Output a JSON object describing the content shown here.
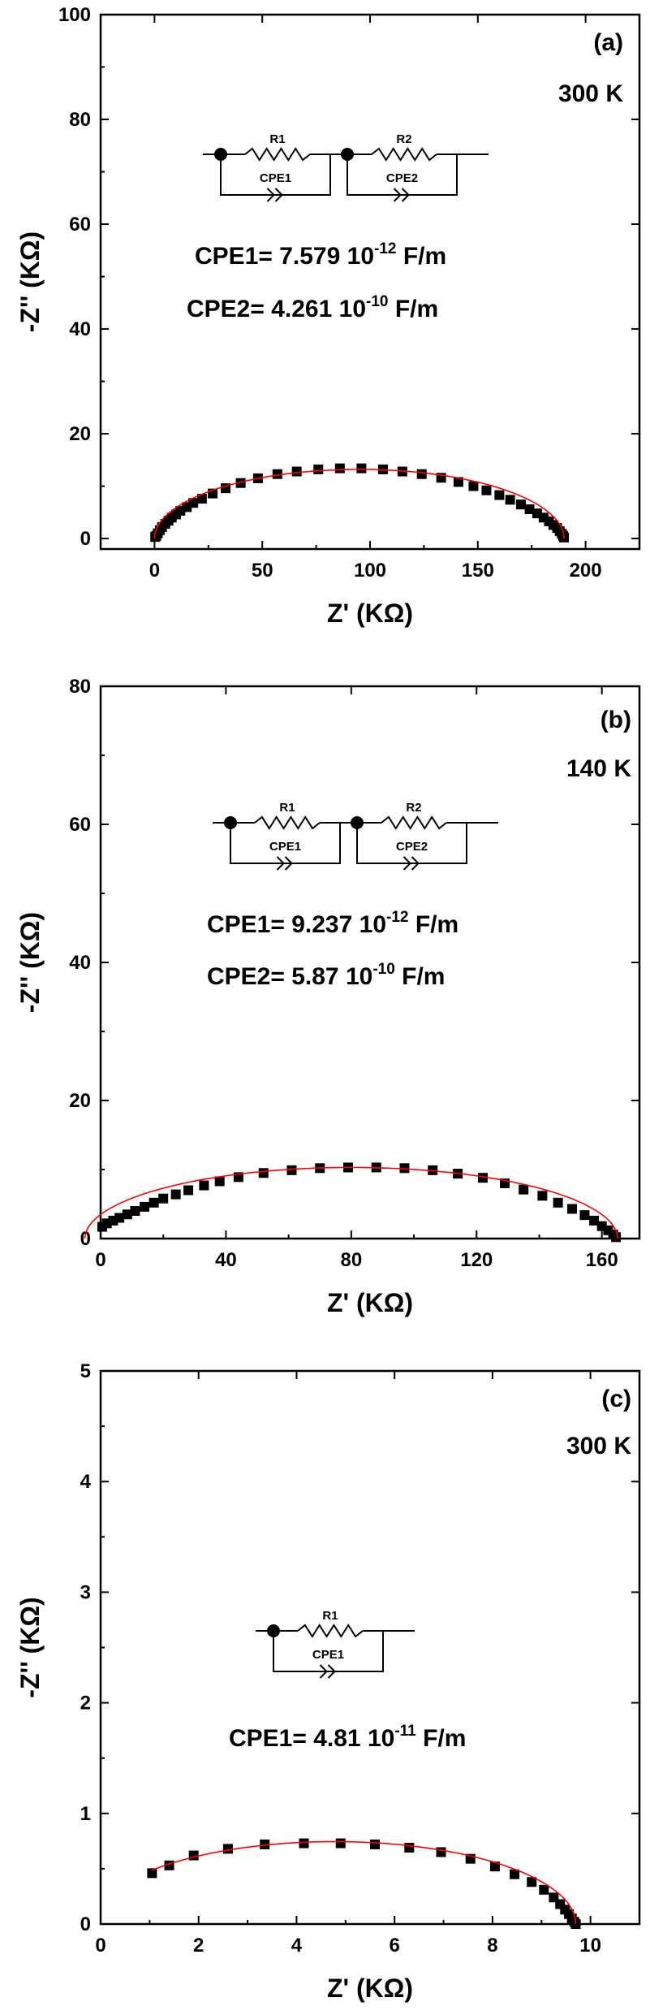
{
  "chart_data": [
    {
      "type": "scatter",
      "panel_label": "(a)",
      "temperature": "300 K",
      "xlabel": "Z' (KΩ)",
      "ylabel": "-Z'' (KΩ)",
      "xlim": [
        -25,
        225
      ],
      "ylim": [
        -2,
        100
      ],
      "xticks": [
        0,
        50,
        100,
        150,
        200
      ],
      "yticks": [
        0,
        20,
        40,
        60,
        80,
        100
      ],
      "circuit": {
        "elements": [
          "R1",
          "CPE1",
          "R2",
          "CPE2"
        ]
      },
      "annotations": [
        {
          "key": "CPE1",
          "prefix": "CPE1= 7.579 10",
          "exp": "-12",
          "suffix": " F/m"
        },
        {
          "key": "CPE2",
          "prefix": "CPE2= 4.261 10",
          "exp": "-10",
          "suffix": " F/m"
        }
      ],
      "series": [
        {
          "kind": "measured",
          "arc": {
            "zmin": 0,
            "zmax": 190,
            "height": 13.2
          },
          "x": [
            0.3,
            0.8,
            1.5,
            2.5,
            3.5,
            5,
            6.5,
            8,
            10,
            12,
            15,
            18,
            22,
            27,
            33,
            40,
            48,
            57,
            66,
            76,
            86,
            96,
            106,
            115,
            124,
            133,
            141,
            148,
            154,
            160,
            165,
            170,
            174,
            177.5,
            180.5,
            183,
            185,
            186.8,
            188,
            189,
            189.6,
            190
          ],
          "y": [
            0.3,
            0.5,
            1.0,
            1.6,
            2.2,
            2.8,
            3.4,
            4.0,
            4.6,
            5.3,
            6.0,
            6.8,
            7.6,
            8.6,
            9.6,
            10.6,
            11.5,
            12.3,
            12.8,
            13.2,
            13.4,
            13.4,
            13.2,
            12.8,
            12.3,
            11.6,
            10.8,
            10.0,
            9.2,
            8.3,
            7.4,
            6.5,
            5.6,
            4.8,
            4.0,
            3.3,
            2.6,
            2.0,
            1.4,
            0.9,
            0.5,
            0.2
          ]
        },
        {
          "kind": "fit",
          "color": "#ff0000"
        }
      ]
    },
    {
      "type": "scatter",
      "panel_label": "(b)",
      "temperature": "140 K",
      "xlabel": "Z' (KΩ)",
      "ylabel": "-Z'' (KΩ)",
      "xlim": [
        0,
        172
      ],
      "ylim": [
        0,
        80
      ],
      "xticks": [
        0,
        40,
        80,
        120,
        160
      ],
      "yticks": [
        0,
        20,
        40,
        60,
        80
      ],
      "circuit": {
        "elements": [
          "R1",
          "CPE1",
          "R2",
          "CPE2"
        ]
      },
      "annotations": [
        {
          "key": "CPE1",
          "prefix": "CPE1= 9.237 10",
          "exp": "-12",
          "suffix": " F/m"
        },
        {
          "key": "CPE2",
          "prefix": "CPE2= 5.87 10",
          "exp": "-10",
          "suffix": " F/m"
        }
      ],
      "series": [
        {
          "kind": "measured",
          "arc": {
            "zmin": -5,
            "zmax": 165,
            "height": 10.3
          },
          "x": [
            0.5,
            2,
            4,
            6,
            8.5,
            11,
            14,
            17,
            20,
            24,
            28,
            33,
            38,
            44,
            52,
            61,
            70,
            79,
            88,
            97,
            106,
            114,
            122,
            129,
            135,
            141,
            146,
            150.5,
            154.5,
            157.5,
            160,
            162,
            163.6,
            164.5
          ],
          "y": [
            1.7,
            2.2,
            2.6,
            3.0,
            3.5,
            4.0,
            4.6,
            5.2,
            5.8,
            6.4,
            7.0,
            7.7,
            8.3,
            8.9,
            9.5,
            9.9,
            10.2,
            10.3,
            10.3,
            10.2,
            9.9,
            9.4,
            8.8,
            8.0,
            7.1,
            6.2,
            5.2,
            4.3,
            3.4,
            2.6,
            1.8,
            1.2,
            0.6,
            0.2
          ]
        },
        {
          "kind": "fit",
          "color": "#ff0000"
        }
      ]
    },
    {
      "type": "scatter",
      "panel_label": "(c)",
      "temperature": "300 K",
      "xlabel": "Z' (KΩ)",
      "ylabel": "-Z'' (KΩ)",
      "xlim": [
        0,
        11
      ],
      "ylim": [
        0,
        5
      ],
      "xticks": [
        0,
        2,
        4,
        6,
        8,
        10
      ],
      "yticks": [
        0,
        1,
        2,
        3,
        4,
        5
      ],
      "circuit": {
        "elements": [
          "R1",
          "CPE1"
        ]
      },
      "annotations": [
        {
          "key": "CPE1",
          "prefix": "CPE1= 4.81 10",
          "exp": "-11",
          "suffix": " F/m"
        }
      ],
      "series": [
        {
          "kind": "measured",
          "arc": {
            "zmin": -0.15,
            "zmax": 9.7,
            "height": 0.745
          },
          "x": [
            1.05,
            1.4,
            1.9,
            2.6,
            3.35,
            4.15,
            4.9,
            5.6,
            6.3,
            6.95,
            7.55,
            8.05,
            8.45,
            8.8,
            9.05,
            9.25,
            9.38,
            9.48,
            9.56,
            9.62,
            9.67,
            9.7
          ],
          "y": [
            0.46,
            0.53,
            0.62,
            0.68,
            0.72,
            0.73,
            0.73,
            0.72,
            0.69,
            0.65,
            0.59,
            0.52,
            0.45,
            0.38,
            0.31,
            0.24,
            0.18,
            0.13,
            0.09,
            0.05,
            0.02,
            0.0
          ]
        },
        {
          "kind": "fit",
          "color": "#ff0000"
        }
      ]
    }
  ]
}
